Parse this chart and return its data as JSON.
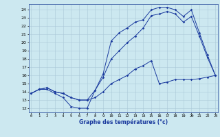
{
  "xlabel": "Graphe des températures (°c)",
  "bg_color": "#cce8f0",
  "line_color": "#1a3a9e",
  "grid_color": "#aac8d8",
  "x_ticks": [
    0,
    1,
    2,
    3,
    4,
    5,
    6,
    7,
    8,
    9,
    10,
    11,
    12,
    13,
    14,
    15,
    16,
    17,
    18,
    19,
    20,
    21,
    22,
    23
  ],
  "y_ticks": [
    12,
    13,
    14,
    15,
    16,
    17,
    18,
    19,
    20,
    21,
    22,
    23,
    24
  ],
  "xlim": [
    -0.3,
    23.3
  ],
  "ylim": [
    11.5,
    24.7
  ],
  "line1_x": [
    0,
    1,
    2,
    3,
    4,
    5,
    6,
    7,
    8,
    9,
    10,
    11,
    12,
    13,
    14,
    15,
    16,
    17,
    18,
    19,
    20,
    21,
    22,
    23
  ],
  "line1_y": [
    13.8,
    14.3,
    14.3,
    13.8,
    13.3,
    12.2,
    12.0,
    12.0,
    14.2,
    16.2,
    20.2,
    21.2,
    21.8,
    22.5,
    22.8,
    24.0,
    24.3,
    24.3,
    24.0,
    23.2,
    24.0,
    21.2,
    18.5,
    16.0
  ],
  "line2_x": [
    0,
    1,
    2,
    3,
    4,
    5,
    6,
    7,
    8,
    9,
    10,
    11,
    12,
    13,
    14,
    15,
    16,
    17,
    18,
    19,
    20,
    21,
    22,
    23
  ],
  "line2_y": [
    13.8,
    14.3,
    14.5,
    14.0,
    13.8,
    13.3,
    13.0,
    13.0,
    14.2,
    15.8,
    18.0,
    19.0,
    20.0,
    20.8,
    21.8,
    23.3,
    23.5,
    23.8,
    23.5,
    22.5,
    23.2,
    20.8,
    18.2,
    16.0
  ],
  "line3_x": [
    0,
    1,
    2,
    3,
    4,
    5,
    6,
    7,
    8,
    9,
    10,
    11,
    12,
    13,
    14,
    15,
    16,
    17,
    18,
    19,
    20,
    21,
    22,
    23
  ],
  "line3_y": [
    13.8,
    14.3,
    14.5,
    14.0,
    13.8,
    13.3,
    13.0,
    13.0,
    13.3,
    14.0,
    15.0,
    15.5,
    16.0,
    16.8,
    17.2,
    17.8,
    15.0,
    15.2,
    15.5,
    15.5,
    15.5,
    15.6,
    15.8,
    16.0
  ]
}
